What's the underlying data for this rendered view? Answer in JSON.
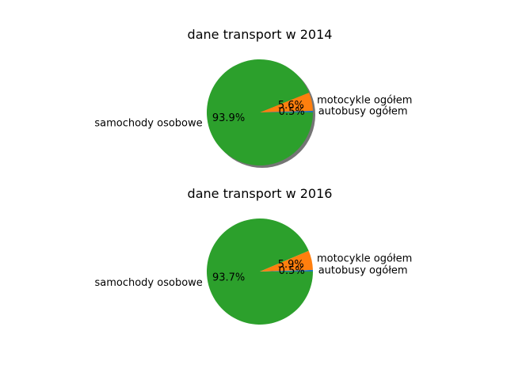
{
  "chart_data": [
    {
      "type": "pie",
      "title": "dane transport w 2014",
      "shadow": true,
      "slices": [
        {
          "label": "autobusy ogółem",
          "value": 0.5,
          "pct_label": "0.5%",
          "color": "#1f77b4"
        },
        {
          "label": "motocykle ogółem",
          "value": 5.6,
          "pct_label": "5.6%",
          "color": "#ff7f0e"
        },
        {
          "label": "samochody osobowe",
          "value": 93.9,
          "pct_label": "93.9%",
          "color": "#2ca02c"
        }
      ]
    },
    {
      "type": "pie",
      "title": "dane transport w 2016",
      "shadow": false,
      "slices": [
        {
          "label": "autobusy ogółem",
          "value": 0.5,
          "pct_label": "0.5%",
          "color": "#1f77b4"
        },
        {
          "label": "motocykle ogółem",
          "value": 5.9,
          "pct_label": "5.9%",
          "color": "#ff7f0e"
        },
        {
          "label": "samochody osobowe",
          "value": 93.7,
          "pct_label": "93.7%",
          "color": "#2ca02c"
        }
      ]
    }
  ]
}
